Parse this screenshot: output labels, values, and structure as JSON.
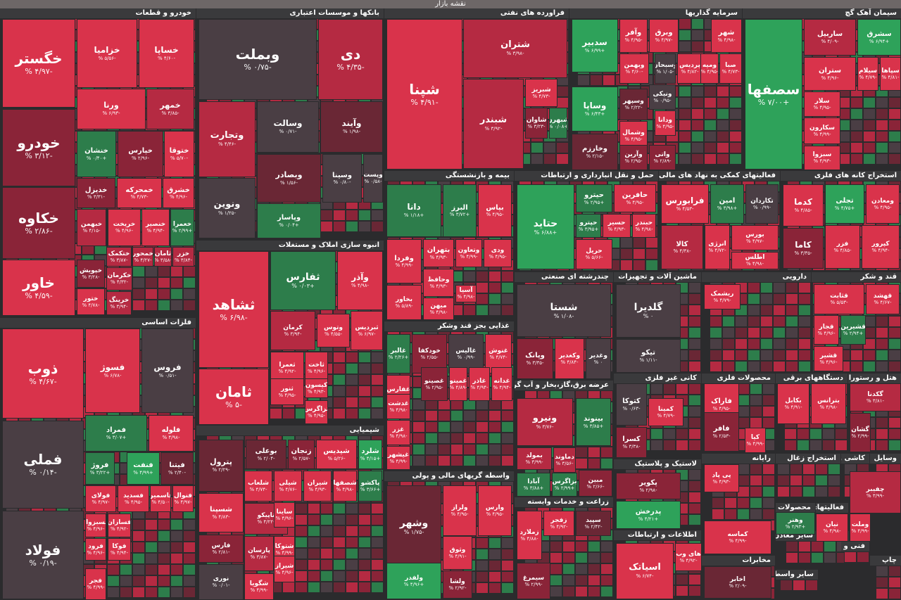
{
  "header": {
    "title": "نقشه بازار"
  },
  "colors": {
    "red": "#d9334b",
    "red2": "#b52a42",
    "darkred": "#8a2438",
    "maroon": "#6a2735",
    "grey": "#4a3e44",
    "green": "#2ea25a",
    "green2": "#2d7d4b"
  },
  "sectors": [
    {
      "title": "خودرو و قطعات"
    },
    {
      "title": "بانکها و موسسات اعتباری"
    },
    {
      "title": "فراورده های نفتی"
    },
    {
      "title": "سرمایه گذاریها"
    },
    {
      "title": "سیمان آهک گچ"
    },
    {
      "title": "انبوه سازی املاک و مستغلات"
    },
    {
      "title": "فلزات اساسی"
    },
    {
      "title": "بیمه و بازنشستگی"
    },
    {
      "title": "حمل و نقل انبارداری و ارتباطات"
    },
    {
      "title": "فعالیتهای کمکی به نهاد های مالی واسط"
    },
    {
      "title": "استخراج کانه های فلزی"
    },
    {
      "title": "چندرشته ای صنعتی"
    },
    {
      "title": "ماشین آلات و تجهیزات"
    },
    {
      "title": "دارویی"
    },
    {
      "title": "قند و شکر"
    },
    {
      "title": "غذایی بجز قند وشکر"
    },
    {
      "title": "کانی غیر فلزی"
    },
    {
      "title": "محصولات فلزی"
    },
    {
      "title": "دستگاههای برقی"
    },
    {
      "title": "هتل و رستوران"
    },
    {
      "title": "شیمیایی"
    },
    {
      "title": "عرضه برق،گاز،بخار و آب گرم"
    },
    {
      "title": "لاستیک و پلاستیک"
    },
    {
      "title": "رایانه"
    },
    {
      "title": "استخراج زغال"
    },
    {
      "title": "کاشی و"
    },
    {
      "title": "وسایل"
    },
    {
      "title": "واسطه گریهای مالی و پولی"
    },
    {
      "title": "زراعت و خدمات وابسته"
    },
    {
      "title": "اطلاعات و ارتباطات"
    },
    {
      "title": "مخابرات"
    },
    {
      "title": "سایر واسطه"
    },
    {
      "title": "استخراج سایر معادن"
    },
    {
      "title": "محصولات"
    },
    {
      "title": "فعالیتهای"
    },
    {
      "title": "چاپ"
    },
    {
      "title": "فنی و"
    }
  ],
  "tiles": [
    {
      "name": "خگستر",
      "pct": "-۴/۹۷ %"
    },
    {
      "name": "خزامیا",
      "pct": "-۵/۵۶ %"
    },
    {
      "name": "خساپا",
      "pct": "-۴/۶۰ %"
    },
    {
      "name": "ورنا",
      "pct": "-۶/۹۳ %"
    },
    {
      "name": "خمهر",
      "pct": "-۳/۸۵ %"
    },
    {
      "name": "خودرو",
      "pct": "-۳/۱۲ %"
    },
    {
      "name": "خنشان",
      "pct": "+۰/۴۰ %"
    },
    {
      "name": "خپارس",
      "pct": "-۲/۹۶ %"
    },
    {
      "name": "ختوقا",
      "pct": "-۵/۷۰ %"
    },
    {
      "name": "خدیزل",
      "pct": "-۳/۳۱ %"
    },
    {
      "name": "خمحرکه",
      "pct": "-۴/۷۳ %"
    },
    {
      "name": "خشرق",
      "pct": "-۴/۹۶ %"
    },
    {
      "name": "خکاوه",
      "pct": "-۲/۸۶ %"
    },
    {
      "name": "خبهمن",
      "pct": "-۴/۱۵ %"
    },
    {
      "name": "خریخت",
      "pct": "-۴/۹۶ %"
    },
    {
      "name": "خنصیر",
      "pct": "-۴/۹۴ %"
    },
    {
      "name": "خعمرا",
      "pct": "+۲/۹۹ %"
    },
    {
      "name": "ختکمک",
      "pct": "-۳/۸۷ %"
    },
    {
      "name": "خمحور",
      "pct": "-۴/۲۷ %"
    },
    {
      "name": "ثامان",
      "pct": "-۳/۵۸ %"
    },
    {
      "name": "خزر",
      "pct": "-۳/۸۴ %"
    },
    {
      "name": "خاور",
      "pct": "-۴/۵۹ %"
    },
    {
      "name": "خپویش",
      "pct": "-۳/۲۸ %"
    },
    {
      "name": "خکرمان",
      "pct": "-۴/۳۲ %"
    },
    {
      "name": "ختور",
      "pct": "-۴/۷۸ %"
    },
    {
      "name": "خرینگ",
      "pct": "-۳/۹۴ %"
    },
    {
      "name": "وبملت",
      "pct": "-۰/۷۵ %"
    },
    {
      "name": "دی",
      "pct": "-۴/۳۵ %"
    },
    {
      "name": "وتجارت",
      "pct": "-۴/۴۶ %"
    },
    {
      "name": "وسالت",
      "pct": "-۰/۷۱ %"
    },
    {
      "name": "وآیند",
      "pct": "-۱/۹۸ %"
    },
    {
      "name": "ونوین",
      "pct": "-۱/۲۵ %"
    },
    {
      "name": "وبصادر",
      "pct": "-۱/۵۶ %"
    },
    {
      "name": "وسینا",
      "pct": "-۰/۸۰ %"
    },
    {
      "name": "وپست",
      "pct": "-۰/۵۸ %"
    },
    {
      "name": "وپاسار",
      "pct": "+۰/۰۴ %"
    },
    {
      "name": "شپنا",
      "pct": "-۴/۹۱ %"
    },
    {
      "name": "شتران",
      "pct": "-۳/۹۸ %"
    },
    {
      "name": "شبندر",
      "pct": "-۳/۹۲ %"
    },
    {
      "name": "شبریز",
      "pct": "-۴/۷۳ %"
    },
    {
      "name": "شاوان",
      "pct": "-۳/۲۳ %"
    },
    {
      "name": "شبهرن",
      "pct": "+۰/۰۸ %"
    },
    {
      "name": "سدبیر",
      "pct": "+۶/۹۹ %"
    },
    {
      "name": "وآفر",
      "pct": "-۴/۹۵ %"
    },
    {
      "name": "وبرق",
      "pct": "-۴/۹۷ %"
    },
    {
      "name": "شهر",
      "pct": "-۴/۹۸ %"
    },
    {
      "name": "وبهمن",
      "pct": "-۴/۶۰ %"
    },
    {
      "name": "وسبحان",
      "pct": "-۱/۰۵ %"
    },
    {
      "name": "پردیس",
      "pct": "-۴/۸۲ %"
    },
    {
      "name": "ومیه",
      "pct": "-۴/۹۵ %"
    },
    {
      "name": "صبا",
      "pct": "-۴/۷۳ %"
    },
    {
      "name": "وساپا",
      "pct": "+۶/۴۳ %"
    },
    {
      "name": "ونیکی",
      "pct": "-۰/۹۵ %"
    },
    {
      "name": "وسپهر",
      "pct": "-۲/۲۲ %"
    },
    {
      "name": "ودانا",
      "pct": "-۴/۹۵ %"
    },
    {
      "name": "وشمال",
      "pct": "-۴/۹۵ %"
    },
    {
      "name": "وخارزم",
      "pct": "-۲/۱۵ %"
    },
    {
      "name": "وآرین",
      "pct": "-۲/۹۵ %"
    },
    {
      "name": "واتی",
      "pct": "-۲/۸۹ %"
    },
    {
      "name": "سصفها",
      "pct": "+۷/۰۰ %"
    },
    {
      "name": "سشرق",
      "pct": "+۶/۹۴ %"
    },
    {
      "name": "ساربیل",
      "pct": "-۴/۰۹ %"
    },
    {
      "name": "ستران",
      "pct": "-۴/۹۶ %"
    },
    {
      "name": "سیلام",
      "pct": "-۴/۷۹ %"
    },
    {
      "name": "سپاها",
      "pct": "-۴/۸۱ %"
    },
    {
      "name": "سلار",
      "pct": "-۴/۹۵ %"
    },
    {
      "name": "سکارون",
      "pct": "-۴/۹۹ %"
    },
    {
      "name": "سبزوا",
      "pct": "-۴/۹۳ %"
    },
    {
      "name": "ثشاهد",
      "pct": "-۶/۹۸ %"
    },
    {
      "name": "ثفارس",
      "pct": "+۰/۰۳ %"
    },
    {
      "name": "وآذر",
      "pct": "-۴/۹۸ %"
    },
    {
      "name": "کرمان",
      "pct": "-۳/۹۴ %"
    },
    {
      "name": "وتوس",
      "pct": "-۴/۵۵ %"
    },
    {
      "name": "ثبردیس",
      "pct": "-۶/۹۷ %"
    },
    {
      "name": "ثامان",
      "pct": "-۵ %"
    },
    {
      "name": "ثعمرا",
      "pct": "-۴/۹۲ %"
    },
    {
      "name": "ثاخت",
      "pct": "-۴/۹۶ %"
    },
    {
      "name": "ثنور",
      "pct": "-۴/۹۵ %"
    },
    {
      "name": "کیسون",
      "pct": "-۴/۹۳ %"
    },
    {
      "name": "ثزاگرس",
      "pct": "-۴/۹۵ %"
    },
    {
      "name": "ذوب",
      "pct": "-۴/۶۷ %"
    },
    {
      "name": "فسوژ",
      "pct": "-۶/۷۸ %"
    },
    {
      "name": "فروس",
      "pct": "-۰/۵۱ %"
    },
    {
      "name": "فملی",
      "pct": "-۰/۱۴ %"
    },
    {
      "name": "فمراد",
      "pct": "+۳/۰۷ %"
    },
    {
      "name": "فلوله",
      "pct": "-۴/۹۸ %"
    },
    {
      "name": "فروژ",
      "pct": "+۳/۲۲ %"
    },
    {
      "name": "فنفت",
      "pct": "+۴/۹۹ %"
    },
    {
      "name": "فیتنا",
      "pct": "-۲/۴۰ %"
    },
    {
      "name": "فولای",
      "pct": "-۴/۹۷ %"
    },
    {
      "name": "فسدید",
      "pct": "-۴/۹۵ %"
    },
    {
      "name": "فاسمین",
      "pct": "-۴/۵۰ %"
    },
    {
      "name": "فنوال",
      "pct": "-۴/۹۷ %"
    },
    {
      "name": "فولاد",
      "pct": "-۰/۱۹ %"
    },
    {
      "name": "فسبزوار",
      "pct": "-۴/۹۶ %"
    },
    {
      "name": "فسازان",
      "pct": "-۴/۹۲ %"
    },
    {
      "name": "فرود",
      "pct": "-۴/۹۶ %"
    },
    {
      "name": "فوکا",
      "pct": "-۴/۹۴ %"
    },
    {
      "name": "فجر",
      "pct": "-۴/۹۹ %"
    },
    {
      "name": "دانا",
      "pct": "+۱/۱۸ %"
    },
    {
      "name": "البرز",
      "pct": "+۳/۷۲ %"
    },
    {
      "name": "بپاس",
      "pct": "-۴/۹۵ %"
    },
    {
      "name": "وفردا",
      "pct": "-۴/۹۹ %"
    },
    {
      "name": "بتهران",
      "pct": "-۴/۹۳ %"
    },
    {
      "name": "وتعاون",
      "pct": "-۴/۹۹ %"
    },
    {
      "name": "ودی",
      "pct": "-۴/۹۵ %"
    },
    {
      "name": "وحافظ",
      "pct": "-۴/۹۳ %"
    },
    {
      "name": "بخاور",
      "pct": "-۵/۸۹ %"
    },
    {
      "name": "آسیا",
      "pct": "-۴/۹۸ %"
    },
    {
      "name": "میهن",
      "pct": "-۴/۹۸ %"
    },
    {
      "name": "حتاید",
      "pct": "+۶/۸۸ %"
    },
    {
      "name": "حیترو",
      "pct": "+۲/۹۵ %"
    },
    {
      "name": "حافرین",
      "pct": "-۴/۹۵ %"
    },
    {
      "name": "حپترو",
      "pct": "+۳/۹۵ %"
    },
    {
      "name": "حسیر",
      "pct": "-۴/۹۳ %"
    },
    {
      "name": "حبندر",
      "pct": "-۴/۹۸ %"
    },
    {
      "name": "حریل",
      "pct": "-۵/۶۶ %"
    },
    {
      "name": "فرابورس",
      "pct": "-۴/۵۳ %"
    },
    {
      "name": "امین",
      "pct": "+۳/۹۸ %"
    },
    {
      "name": "تکاردان",
      "pct": "-۰/۹۹ %"
    },
    {
      "name": "کالا",
      "pct": "-۴/۳۸ %"
    },
    {
      "name": "انرژی",
      "pct": "-۴/۷۲ %"
    },
    {
      "name": "بورس",
      "pct": "-۴/۹۷ %"
    },
    {
      "name": "اطلس",
      "pct": "-۴/۹۸ %"
    },
    {
      "name": "کدما",
      "pct": "-۴/۸۵ %"
    },
    {
      "name": "تجلی",
      "pct": "+۴/۷۵ %"
    },
    {
      "name": "ومعادن",
      "pct": "-۴/۹۵ %"
    },
    {
      "name": "کاما",
      "pct": "-۳/۳۵ %"
    },
    {
      "name": "فزر",
      "pct": "-۴/۸۵ %"
    },
    {
      "name": "کپرور",
      "pct": "-۴/۹۴ %"
    },
    {
      "name": "شستا",
      "pct": "-۱/۰۸ %"
    },
    {
      "name": "وپانک",
      "pct": "-۳/۳۵ %"
    },
    {
      "name": "وکغدیر",
      "pct": "-۴/۸۴ %"
    },
    {
      "name": "وغدیر",
      "pct": "۰ %"
    },
    {
      "name": "گلدیرا",
      "pct": "۰ %"
    },
    {
      "name": "تیکو",
      "pct": "-۱/۱۱ %"
    },
    {
      "name": "ریشمک",
      "pct": "-۴/۷۹ %"
    },
    {
      "name": "قهشد",
      "pct": "-۴/۶۷ %"
    },
    {
      "name": "قثابت",
      "pct": "-۵/۵۳ %"
    },
    {
      "name": "قجار",
      "pct": "-۴/۹۶ %"
    },
    {
      "name": "قشیرین",
      "pct": "+۲/۹۴ %"
    },
    {
      "name": "قشیر",
      "pct": "-۴/۹۶ %"
    },
    {
      "name": "غالبر",
      "pct": "+۲/۲۶ %"
    },
    {
      "name": "خودکفا",
      "pct": "-۲/۵۵ %"
    },
    {
      "name": "غاليس",
      "pct": "-۰/۹۹ %"
    },
    {
      "name": "غنوش",
      "pct": "-۴/۷۴ %"
    },
    {
      "name": "غفارس",
      "pct": "-۴/۹۸ %"
    },
    {
      "name": "غصینو",
      "pct": "-۲/۹۵ %"
    },
    {
      "name": "غمینو",
      "pct": "-۴/۸۹ %"
    },
    {
      "name": "غاذر",
      "pct": "-۴/۹۴ %"
    },
    {
      "name": "غدانه",
      "pct": "-۴/۹۴ %"
    },
    {
      "name": "غدشت",
      "pct": "-۴/۹۸ %"
    },
    {
      "name": "غزر",
      "pct": "-۴/۹۸ %"
    },
    {
      "name": "غیشهر",
      "pct": "-۴/۹۹ %"
    },
    {
      "name": "کتوکا",
      "pct": "-۰/۶۳ %"
    },
    {
      "name": "کمینا",
      "pct": "-۴/۷۹ %"
    },
    {
      "name": "کسرا",
      "pct": "-۳/۳۸ %"
    },
    {
      "name": "کیا",
      "pct": "-۴/۹۹ %"
    },
    {
      "name": "فاراک",
      "pct": "-۴/۹۵ %"
    },
    {
      "name": "فافر",
      "pct": "-۲/۵۳ %"
    },
    {
      "name": "بکابل",
      "pct": "-۴/۹۱ %"
    },
    {
      "name": "بترانس",
      "pct": "-۴/۹۸ %"
    },
    {
      "name": "گکدنا",
      "pct": "-۳/۸۱ %"
    },
    {
      "name": "گشان",
      "pct": "-۲/۹۹ %"
    },
    {
      "name": "بوعلی",
      "pct": "-۲/۰۴ %"
    },
    {
      "name": "زنجان",
      "pct": "-۲/۵۷ %"
    },
    {
      "name": "شپدیس",
      "pct": "-۵/۲۶ %"
    },
    {
      "name": "شلرد",
      "pct": "+۴/۱۵ %"
    },
    {
      "name": "پترول",
      "pct": "-۲/۲۹ %"
    },
    {
      "name": "شلعاب",
      "pct": "-۴/۷۴ %"
    },
    {
      "name": "شیلی",
      "pct": "-۴/۷۶ %"
    },
    {
      "name": "شیران",
      "pct": "-۴/۹۳ %"
    },
    {
      "name": "شصفها",
      "pct": "-۴/۹۸ %"
    },
    {
      "name": "پاکشو",
      "pct": "+۳/۶۶ %"
    },
    {
      "name": "شسپنا",
      "pct": "-۴/۸۳ %"
    },
    {
      "name": "تاپیکو",
      "pct": "-۴/۲۲ %"
    },
    {
      "name": "ساینا",
      "pct": "-۴/۹۶ %"
    },
    {
      "name": "فارس",
      "pct": "-۲/۸۱ %"
    },
    {
      "name": "پارسان",
      "pct": "-۳/۸۷ %"
    },
    {
      "name": "شتوکا",
      "pct": "-۴/۹۹ %"
    },
    {
      "name": "شیراز",
      "pct": "-۴/۹۶ %"
    },
    {
      "name": "نوری",
      "pct": "-۰/۰۱ %"
    },
    {
      "name": "شگویا",
      "pct": "-۴/۹۹ %"
    },
    {
      "name": "ونیرو",
      "pct": "-۳/۷۶ %"
    },
    {
      "name": "بینوند",
      "pct": "+۳/۸۵ %"
    },
    {
      "name": "بمولد",
      "pct": "-۳/۹۹ %"
    },
    {
      "name": "دماوند",
      "pct": "-۳/۵۶ %"
    },
    {
      "name": "آبادا",
      "pct": "+۳/۸۸ %"
    },
    {
      "name": "بزاگرس",
      "pct": "+۲/۹۹ %"
    },
    {
      "name": "مبین",
      "pct": "-۲/۶۶ %"
    },
    {
      "name": "پکویر",
      "pct": "-۲/۹۸ %"
    },
    {
      "name": "پدرخش",
      "pct": "+۴/۲۱ %"
    },
    {
      "name": "پی پاد",
      "pct": "-۴/۹۳ %"
    },
    {
      "name": "وشهر",
      "pct": "-۱/۷۵ %"
    },
    {
      "name": "ولراز",
      "pct": "-۴/۹۵ %"
    },
    {
      "name": "وارس",
      "pct": "-۴/۹۵ %"
    },
    {
      "name": "وثوق",
      "pct": "-۴/۹۱ %"
    },
    {
      "name": "ولشا",
      "pct": "-۲/۹۲ %"
    },
    {
      "name": "ولفدر",
      "pct": "+۴/۹۶ %"
    },
    {
      "name": "زملارد",
      "pct": "-۴/۸۸ %"
    },
    {
      "name": "زفجر",
      "pct": "-۴/۹۲ %"
    },
    {
      "name": "سپید",
      "pct": "-۲/۴۲ %"
    },
    {
      "name": "سیمرغ",
      "pct": "-۲/۹۹ %"
    },
    {
      "name": "اسیاتک",
      "pct": "-۶/۷۴ %"
    },
    {
      "name": "های وب",
      "pct": "-۴/۹۲ %"
    },
    {
      "name": "اخابر",
      "pct": "-۲/۰۹ %"
    },
    {
      "name": "کماسه",
      "pct": "-۴/۹۹ %"
    },
    {
      "name": "وهنر",
      "pct": "+۲/۹۳ %"
    },
    {
      "name": "نیان",
      "pct": "-۴/۹۸ %"
    },
    {
      "name": "وملت",
      "pct": "-۴/۹۹ %"
    },
    {
      "name": "چفیبر",
      "pct": "-۳/۹۹ %"
    }
  ]
}
